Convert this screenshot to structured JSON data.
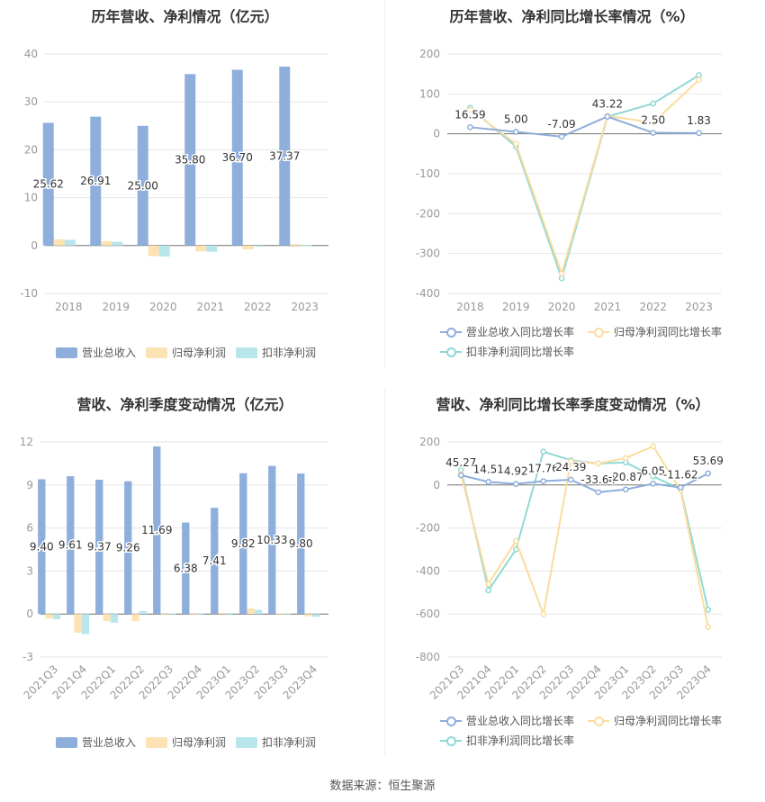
{
  "colors": {
    "revenue": "#8eaedc",
    "parent_profit": "#fde3b3",
    "deducted_profit": "#b8e6ea",
    "grid": "#e6e6e6",
    "axis_text": "#999999",
    "line_revenue": "#8eaedc",
    "line_parent": "#fbdc9e",
    "line_deducted": "#8fd9d6"
  },
  "icons": {
    "legend_bar": "rect-swatch",
    "legend_line": "line-circle-swatch"
  },
  "source": "数据来源：恒生聚源",
  "chart_data": [
    {
      "type": "bar",
      "title": "历年营收、净利情况（亿元）",
      "categories": [
        "2018",
        "2019",
        "2020",
        "2021",
        "2022",
        "2023"
      ],
      "ylim": [
        -10,
        40
      ],
      "yticks": [
        -10,
        0,
        10,
        20,
        30,
        40
      ],
      "grid": true,
      "legend_position": "bottom",
      "series": [
        {
          "name": "营业总收入",
          "values": [
            25.62,
            26.91,
            25.0,
            35.8,
            36.7,
            37.37
          ],
          "labels": [
            "25.62",
            "26.91",
            "25.00",
            "35.80",
            "36.70",
            "37.37"
          ]
        },
        {
          "name": "归母净利润",
          "values": [
            1.3,
            0.9,
            -2.2,
            -1.2,
            -0.8,
            0.3
          ]
        },
        {
          "name": "扣非净利润",
          "values": [
            1.2,
            0.8,
            -2.3,
            -1.3,
            -0.2,
            0.1
          ]
        }
      ]
    },
    {
      "type": "line",
      "title": "历年营收、净利同比增长率情况（%）",
      "categories": [
        "2018",
        "2019",
        "2020",
        "2021",
        "2022",
        "2023"
      ],
      "ylim": [
        -400,
        200
      ],
      "yticks": [
        -400,
        -300,
        -200,
        -100,
        0,
        100,
        200
      ],
      "grid": true,
      "legend_position": "bottom",
      "series": [
        {
          "name": "营业总收入同比增长率",
          "values": [
            16.59,
            5.0,
            -7.09,
            43.22,
            2.5,
            1.83
          ],
          "labels": [
            "16.59",
            "5.00",
            "-7.09",
            "43.22",
            "2.50",
            "1.83"
          ]
        },
        {
          "name": "归母净利润同比增长率",
          "values": [
            60,
            -25,
            -350,
            45,
            28,
            135
          ]
        },
        {
          "name": "扣非净利润同比增长率",
          "values": [
            65,
            -32,
            -362,
            43,
            76,
            147
          ]
        }
      ]
    },
    {
      "type": "bar",
      "title": "营收、净利季度变动情况（亿元）",
      "categories": [
        "2021Q3",
        "2021Q4",
        "2022Q1",
        "2022Q2",
        "2022Q3",
        "2022Q4",
        "2023Q1",
        "2023Q2",
        "2023Q3",
        "2023Q4"
      ],
      "ylim": [
        -3,
        12
      ],
      "yticks": [
        -3,
        0,
        3,
        6,
        9,
        12
      ],
      "grid": true,
      "legend_position": "bottom",
      "series": [
        {
          "name": "营业总收入",
          "values": [
            9.4,
            9.61,
            9.37,
            9.26,
            11.69,
            6.38,
            7.41,
            9.82,
            10.33,
            9.8
          ],
          "labels": [
            "9.40",
            "9.61",
            "9.37",
            "9.26",
            "11.69",
            "6.38",
            "7.41",
            "9.82",
            "10.33",
            "9.80"
          ]
        },
        {
          "name": "归母净利润",
          "values": [
            -0.3,
            -1.3,
            -0.5,
            -0.5,
            0.0,
            -0.05,
            0.1,
            0.4,
            0.05,
            -0.15
          ]
        },
        {
          "name": "扣非净利润",
          "values": [
            -0.35,
            -1.4,
            -0.6,
            0.2,
            0.05,
            0.05,
            -0.05,
            0.3,
            0.05,
            -0.2
          ]
        }
      ]
    },
    {
      "type": "line",
      "title": "营收、净利同比增长率季度变动情况（%）",
      "categories": [
        "2021Q3",
        "2021Q4",
        "2022Q1",
        "2022Q2",
        "2022Q3",
        "2022Q4",
        "2023Q1",
        "2023Q2",
        "2023Q3",
        "2023Q4"
      ],
      "ylim": [
        -800,
        200
      ],
      "yticks": [
        -800,
        -600,
        -400,
        -200,
        0,
        200
      ],
      "grid": true,
      "legend_position": "bottom",
      "series": [
        {
          "name": "营业总收入同比增长率",
          "values": [
            45.27,
            14.51,
            4.92,
            17.76,
            24.39,
            -33.64,
            -20.87,
            6.05,
            -11.62,
            53.69
          ],
          "labels": [
            "45.27",
            "14.51",
            "4.92",
            "17.76",
            "24.39",
            "-33.64",
            "-20.87",
            "6.05",
            "-11.62",
            "53.69"
          ]
        },
        {
          "name": "归母净利润同比增长率",
          "values": [
            50,
            -460,
            -260,
            -600,
            110,
            100,
            125,
            180,
            -25,
            -660
          ]
        },
        {
          "name": "扣非净利润同比增长率",
          "values": [
            70,
            -490,
            -300,
            155,
            115,
            100,
            105,
            40,
            -20,
            -580
          ]
        }
      ]
    }
  ]
}
